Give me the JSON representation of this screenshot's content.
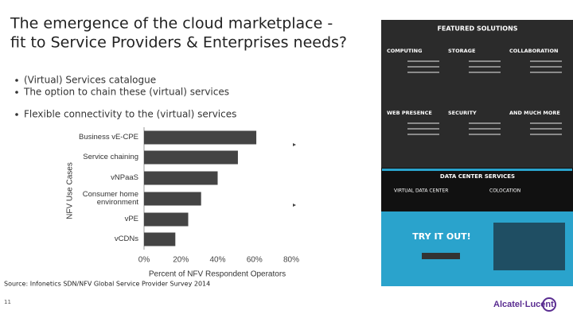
{
  "title_lines": [
    "The emergence of the cloud marketplace -",
    "fit to Service Providers & Enterprises needs?"
  ],
  "bullets": [
    "(Virtual) Services catalogue",
    "The option to chain these (virtual) services",
    "Flexible connectivity to the (virtual) services"
  ],
  "chart": {
    "type": "bar",
    "orientation": "horizontal",
    "y_axis_title": "NFV Use Cases",
    "x_axis_title": "Percent of NFV Respondent Operators",
    "categories": [
      "Business vE-CPE",
      "Service chaining",
      "vNPaaS",
      "Consumer home environment",
      "vPE",
      "vCDNs"
    ],
    "values": [
      61,
      51,
      40,
      31,
      24,
      17
    ],
    "color": "#444444",
    "xlim": [
      0,
      80
    ],
    "xticks": [
      {
        "value": 0,
        "label": "0%"
      },
      {
        "value": 20,
        "label": "20%"
      },
      {
        "value": 40,
        "label": "40%"
      },
      {
        "value": 60,
        "label": "60%"
      },
      {
        "value": 80,
        "label": "80%"
      }
    ]
  },
  "source": "Source: Infonetics SDN/NFV Global Service Provider Survey 2014",
  "page_number": "11",
  "logo": "Alcatel·Lucent",
  "panel": {
    "heading": "FEATURED SOLUTIONS",
    "items": [
      "COMPUTING",
      "STORAGE",
      "COLLABORATION",
      "WEB PRESENCE",
      "SECURITY",
      "AND MUCH MORE"
    ],
    "dc_heading": "DATA CENTER SERVICES",
    "dc_items": [
      "VIRTUAL DATA CENTER",
      "COLOCATION"
    ],
    "cta": "TRY IT OUT!"
  }
}
